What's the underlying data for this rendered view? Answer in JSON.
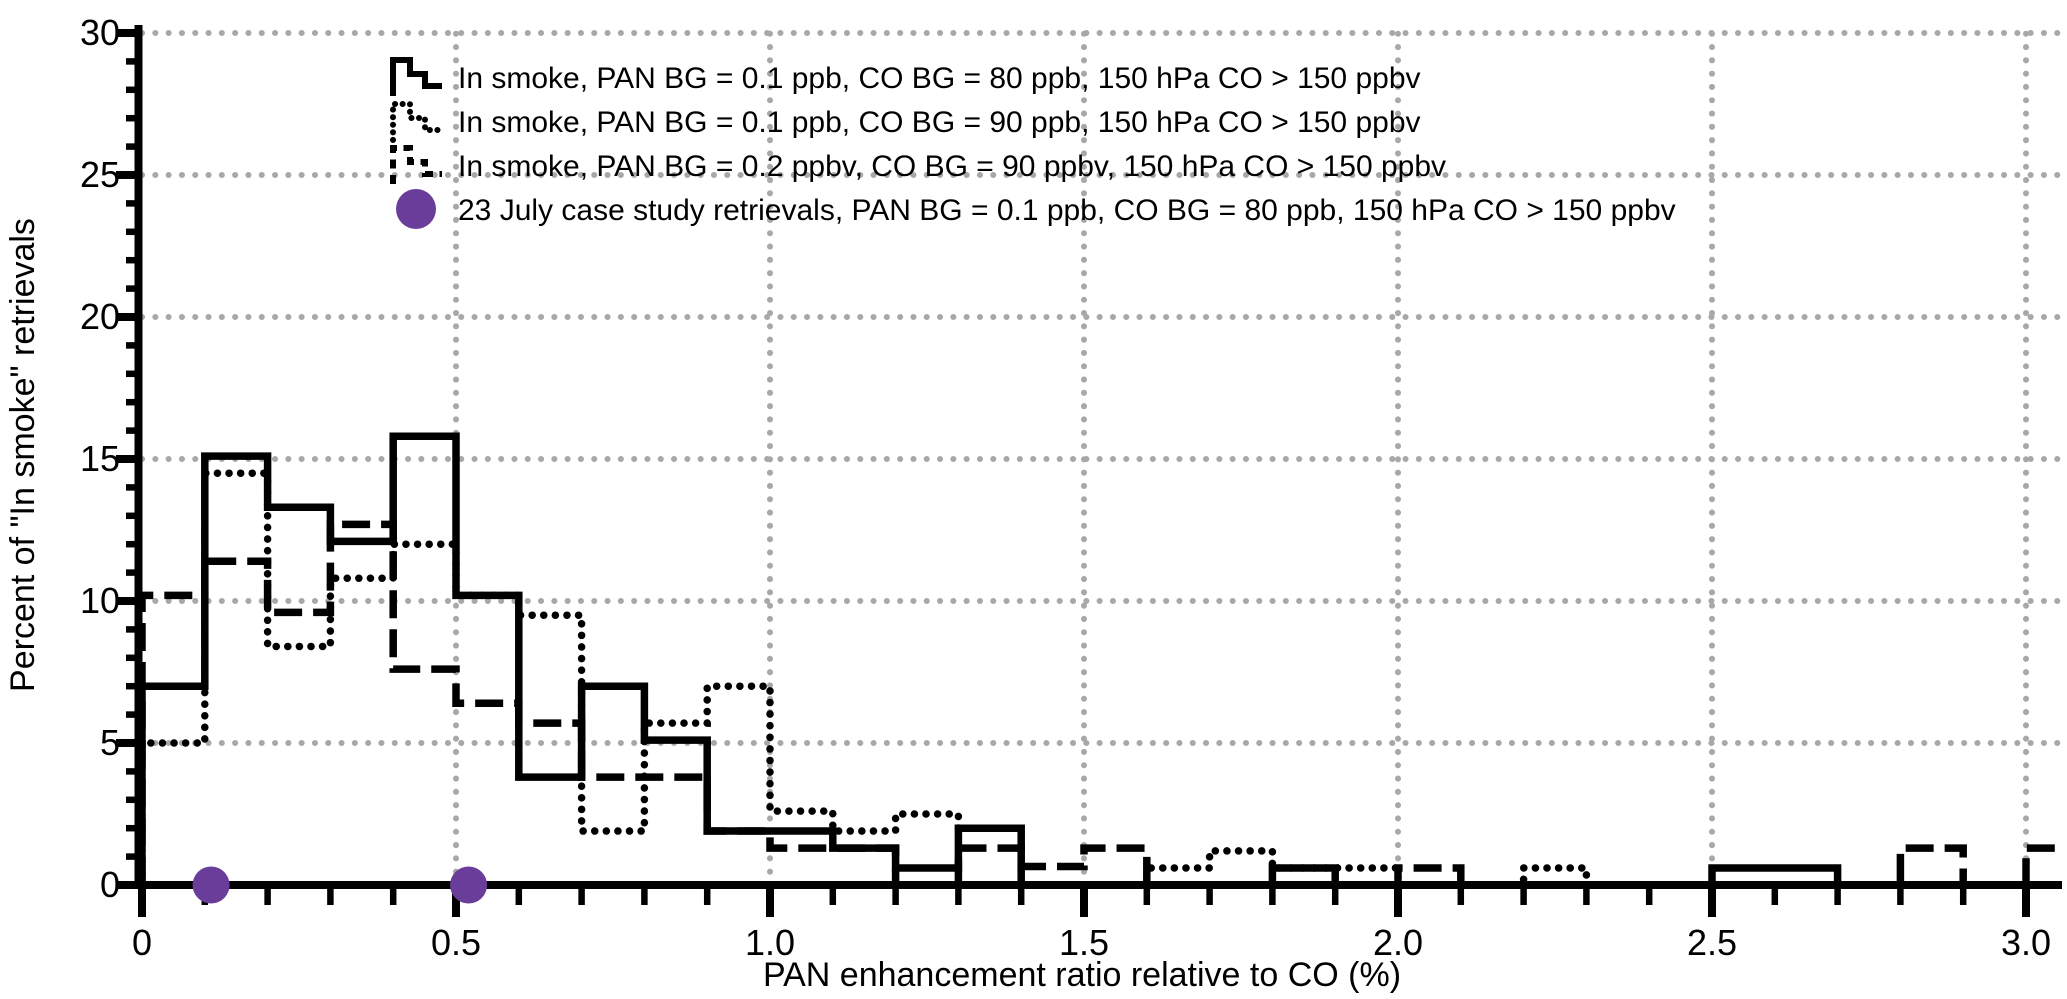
{
  "figure": {
    "background": "#ffffff",
    "axis_color": "#000000",
    "grid_color": "#a8a8a8",
    "line_color": "#000000",
    "accent_purple": "#6a3d9a"
  },
  "chart_data": {
    "type": "step-histogram",
    "title": "",
    "xlabel": "PAN enhancement ratio relative to CO (%)",
    "ylabel": "Percent of \"In smoke\" retrievals",
    "xlim": [
      0,
      3.0
    ],
    "ylim": [
      0,
      30
    ],
    "grid": true,
    "x_major_ticks": [
      0,
      0.5,
      1.0,
      1.5,
      2.0,
      2.5,
      3.0
    ],
    "x_tick_labels": [
      "0",
      "0.5",
      "1.0",
      "1.5",
      "2.0",
      "2.5",
      "3.0"
    ],
    "x_minor_step": 0.1,
    "y_major_ticks": [
      0,
      5,
      10,
      15,
      20,
      25,
      30
    ],
    "y_tick_labels": [
      "0",
      "5",
      "10",
      "15",
      "20",
      "25",
      "30"
    ],
    "y_minor_step": 1,
    "bin_start": 0,
    "bin_width": 0.1,
    "legend_position": "upper-left-inside",
    "series": [
      {
        "name": "solid",
        "style": "solid",
        "label": "In smoke, PAN BG = 0.1 ppb, CO BG = 80 ppb, 150 hPa CO > 150 ppbv",
        "values": [
          7.0,
          15.1,
          13.3,
          12.1,
          15.8,
          10.2,
          3.8,
          7.0,
          5.1,
          1.9,
          1.9,
          1.3,
          0.6,
          2.0,
          0,
          0,
          0,
          0,
          0.6,
          0,
          0,
          0,
          0,
          0,
          0,
          0.6,
          0.6,
          0,
          0,
          0
        ]
      },
      {
        "name": "dotted",
        "style": "dotted",
        "label": "In smoke, PAN BG = 0.1 ppb, CO BG = 90 ppb, 150 hPa CO > 150 ppbv",
        "values": [
          5.0,
          14.5,
          8.4,
          10.8,
          12.0,
          10.2,
          9.5,
          1.9,
          5.7,
          7.0,
          2.6,
          1.9,
          2.5,
          2.0,
          0,
          0,
          0.6,
          1.2,
          0.6,
          0.6,
          0,
          0,
          0.6,
          0,
          0,
          0,
          0,
          0,
          0,
          0
        ]
      },
      {
        "name": "dashed",
        "style": "dashed",
        "label": "In smoke, PAN BG = 0.2 ppbv, CO BG = 90 ppbv, 150 hPa CO > 150 ppbv",
        "values": [
          10.2,
          11.4,
          9.6,
          12.7,
          7.6,
          6.4,
          5.7,
          3.8,
          3.8,
          1.9,
          1.3,
          1.3,
          0,
          1.3,
          0.65,
          1.3,
          0,
          0,
          0,
          0,
          0.6,
          0,
          0,
          0,
          0,
          0,
          0,
          0,
          1.3,
          0
        ],
        "right_edge_rise_value": 1.3
      }
    ],
    "scatter": {
      "name": "case-study-points",
      "label": "23 July case study retrievals, PAN BG = 0.1 ppb, CO BG = 80 ppb, 150 hPa CO > 150 ppbv",
      "color": "#6a3d9a",
      "points": [
        {
          "x": 0.11,
          "y": 0
        },
        {
          "x": 0.52,
          "y": 0
        }
      ]
    }
  }
}
